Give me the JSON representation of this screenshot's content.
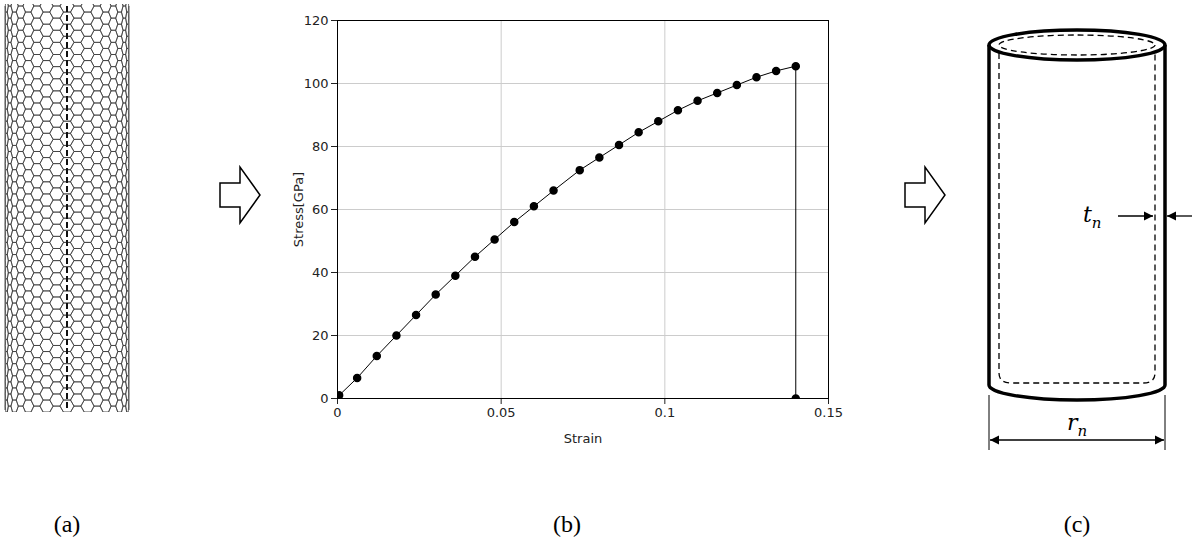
{
  "chart_data": {
    "type": "line",
    "x": [
      0.0005,
      0.006,
      0.012,
      0.018,
      0.024,
      0.03,
      0.036,
      0.042,
      0.048,
      0.054,
      0.06,
      0.066,
      0.074,
      0.08,
      0.086,
      0.092,
      0.098,
      0.104,
      0.11,
      0.116,
      0.122,
      0.128,
      0.134,
      0.14,
      0.14
    ],
    "values": [
      1,
      6.5,
      13.5,
      20,
      26.5,
      33,
      39,
      45,
      50.5,
      56,
      61,
      66,
      72.5,
      76.5,
      80.5,
      84.5,
      88,
      91.5,
      94.5,
      97,
      99.5,
      102,
      104,
      105.5,
      0
    ],
    "xlabel": "Strain",
    "ylabel": "Stress[GPa]",
    "xlim": [
      0,
      0.15
    ],
    "ylim": [
      0,
      120
    ],
    "xticks": [
      0,
      0.05,
      0.1,
      0.15
    ],
    "yticks": [
      0,
      20,
      40,
      60,
      80,
      100,
      120
    ],
    "grid": true,
    "color": "#000000",
    "marker": "circle"
  },
  "diagram": {
    "panel_labels": [
      "(a)",
      "(b)",
      "(c)"
    ],
    "cylinder": {
      "thickness_label": {
        "text": "t",
        "subscript": "n"
      },
      "diameter_label": {
        "text": "r",
        "subscript": "n"
      }
    }
  }
}
